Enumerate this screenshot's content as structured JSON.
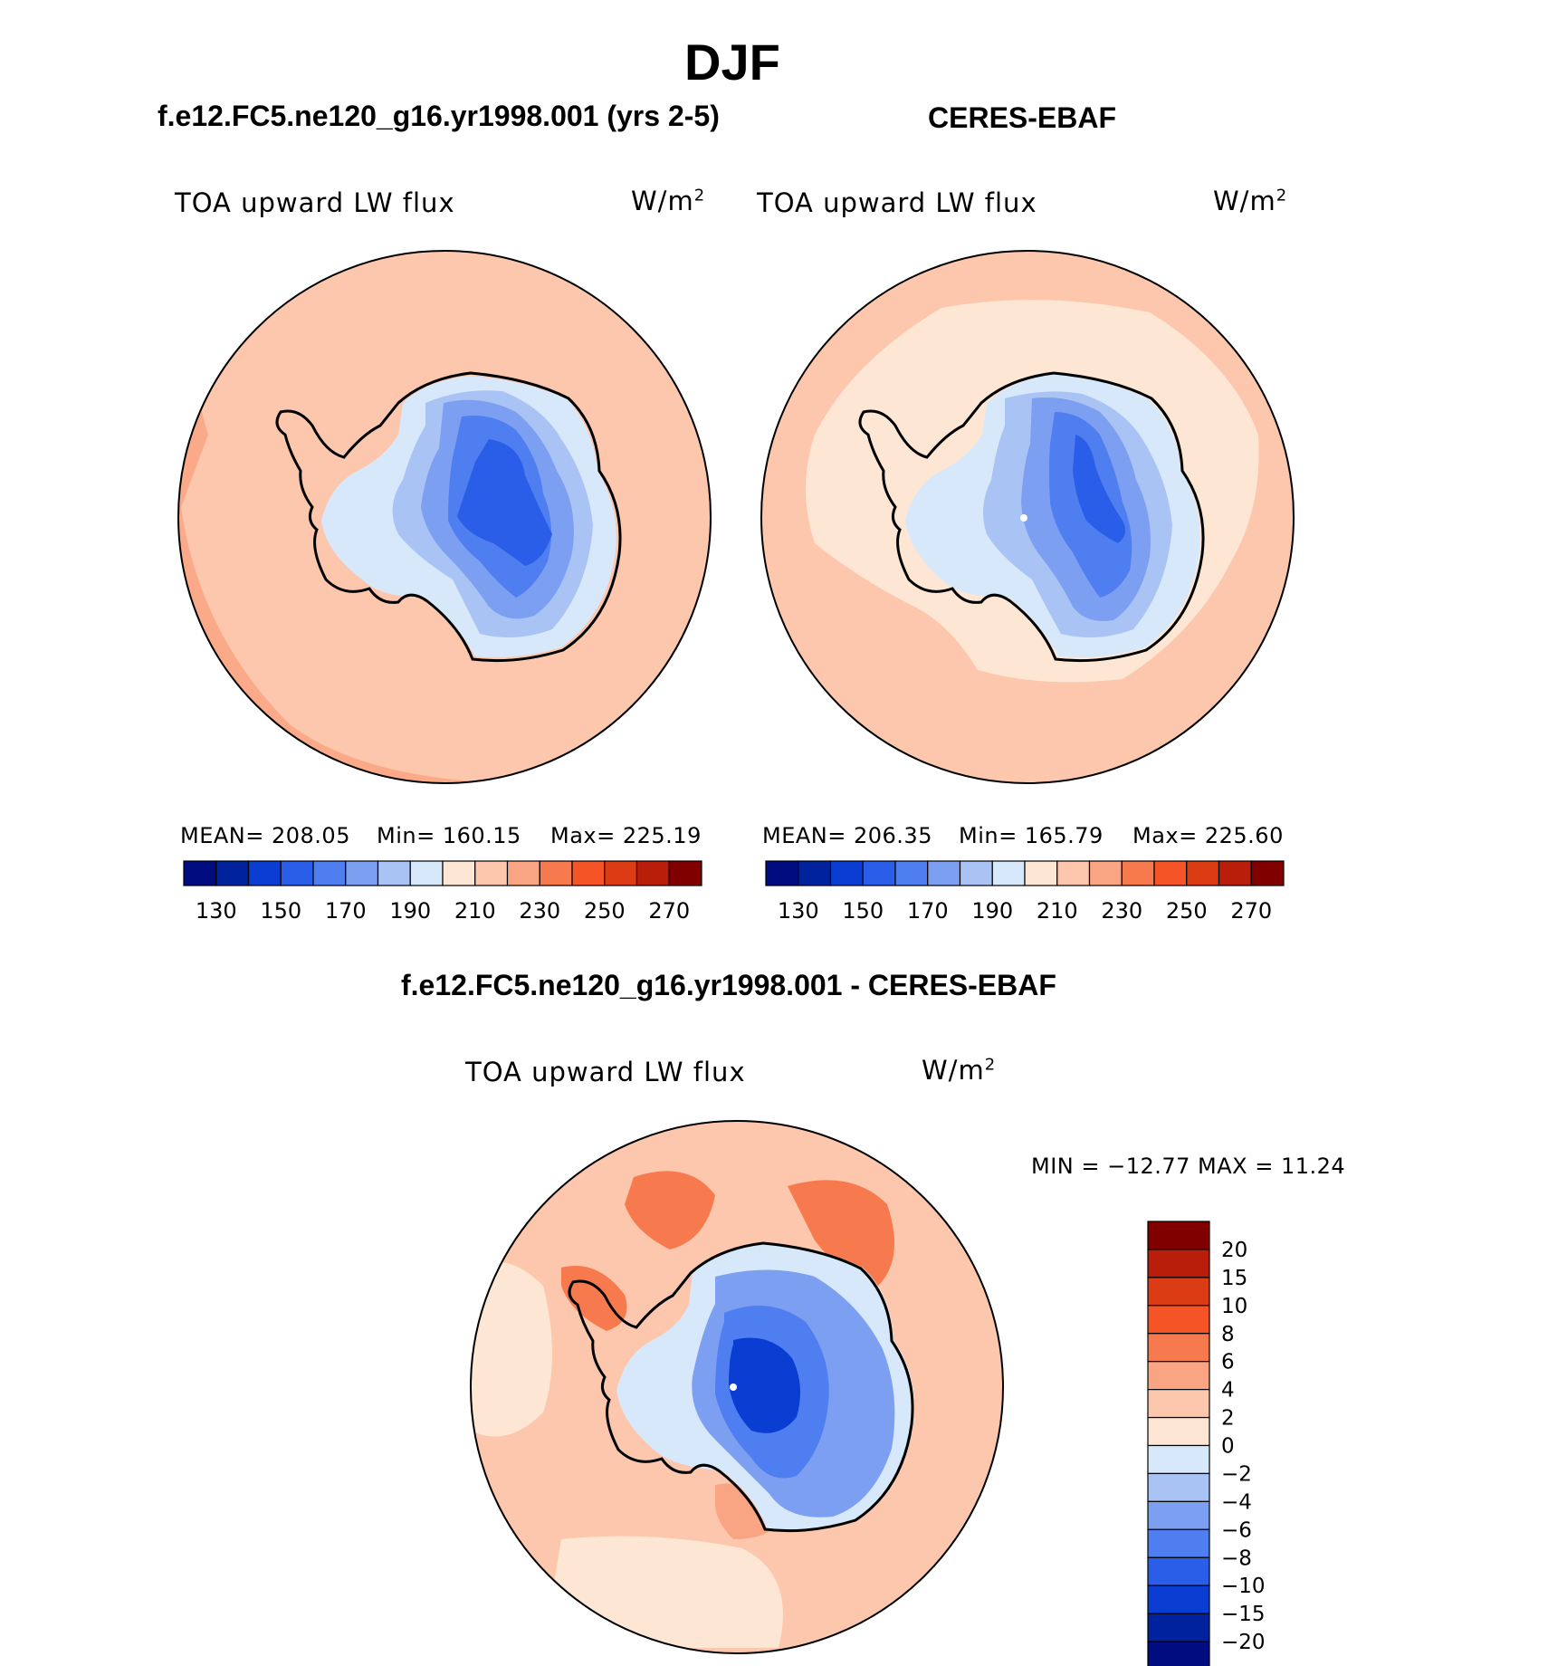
{
  "season": "DJF",
  "panels": [
    {
      "title": "f.e12.FC5.ne120_g16.yr1998.001 (yrs 2-5)",
      "variable": "TOA upward LW flux",
      "units": "W/m",
      "units_exp": "2",
      "stats": {
        "mean": "MEAN= 208.05",
        "min": "Min= 160.15",
        "max": "Max= 225.19"
      }
    },
    {
      "title": "CERES-EBAF",
      "variable": "TOA upward LW flux",
      "units": "W/m",
      "units_exp": "2",
      "stats": {
        "mean": "MEAN= 206.35",
        "min": "Min= 165.79",
        "max": "Max= 225.60"
      }
    },
    {
      "title": "f.e12.FC5.ne120_g16.yr1998.001 - CERES-EBAF",
      "variable": "TOA upward LW flux",
      "units": "W/m",
      "units_exp": "2",
      "stats": {
        "minmax": "MIN = −12.77 MAX =   11.24"
      }
    }
  ],
  "colorbar_abs": {
    "colors": [
      "#000c80",
      "#00229c",
      "#0a3dd1",
      "#2a5ee8",
      "#4f7ef0",
      "#7d9ff2",
      "#a9c3f5",
      "#d7e8fa",
      "#fde6d4",
      "#fcc7ad",
      "#f9a482",
      "#f77a4e",
      "#f55427",
      "#db3c14",
      "#b81e0a",
      "#800000"
    ],
    "tick_labels": [
      "130",
      "150",
      "170",
      "190",
      "210",
      "230",
      "250",
      "270"
    ]
  },
  "colorbar_diff": {
    "colors": [
      "#000c80",
      "#00229c",
      "#0a3dd1",
      "#2a5ee8",
      "#4f7ef0",
      "#7d9ff2",
      "#a9c3f5",
      "#d7e8fa",
      "#fde6d4",
      "#fcc7ad",
      "#f9a482",
      "#f77a4e",
      "#f55427",
      "#db3c14",
      "#b81e0a",
      "#800000"
    ],
    "tick_labels": [
      "20",
      "15",
      "10",
      "8",
      "6",
      "4",
      "2",
      "0",
      "−2",
      "−4",
      "−6",
      "−8",
      "−10",
      "−15",
      "−20"
    ]
  },
  "map_colors": {
    "ocean_warm": "#fcc7ad",
    "ocean_light": "#fde6d4",
    "ocean_edge": "#f9a482",
    "ice_light": "#d7e8fa",
    "ice_mid1": "#a9c3f5",
    "ice_mid2": "#7d9ff2",
    "ice_deep": "#4f7ef0",
    "ice_core": "#2a5ee8",
    "diff_pos": "#f9a482",
    "diff_strong": "#f77a4e",
    "diff_neg_core": "#0a3dd1"
  }
}
